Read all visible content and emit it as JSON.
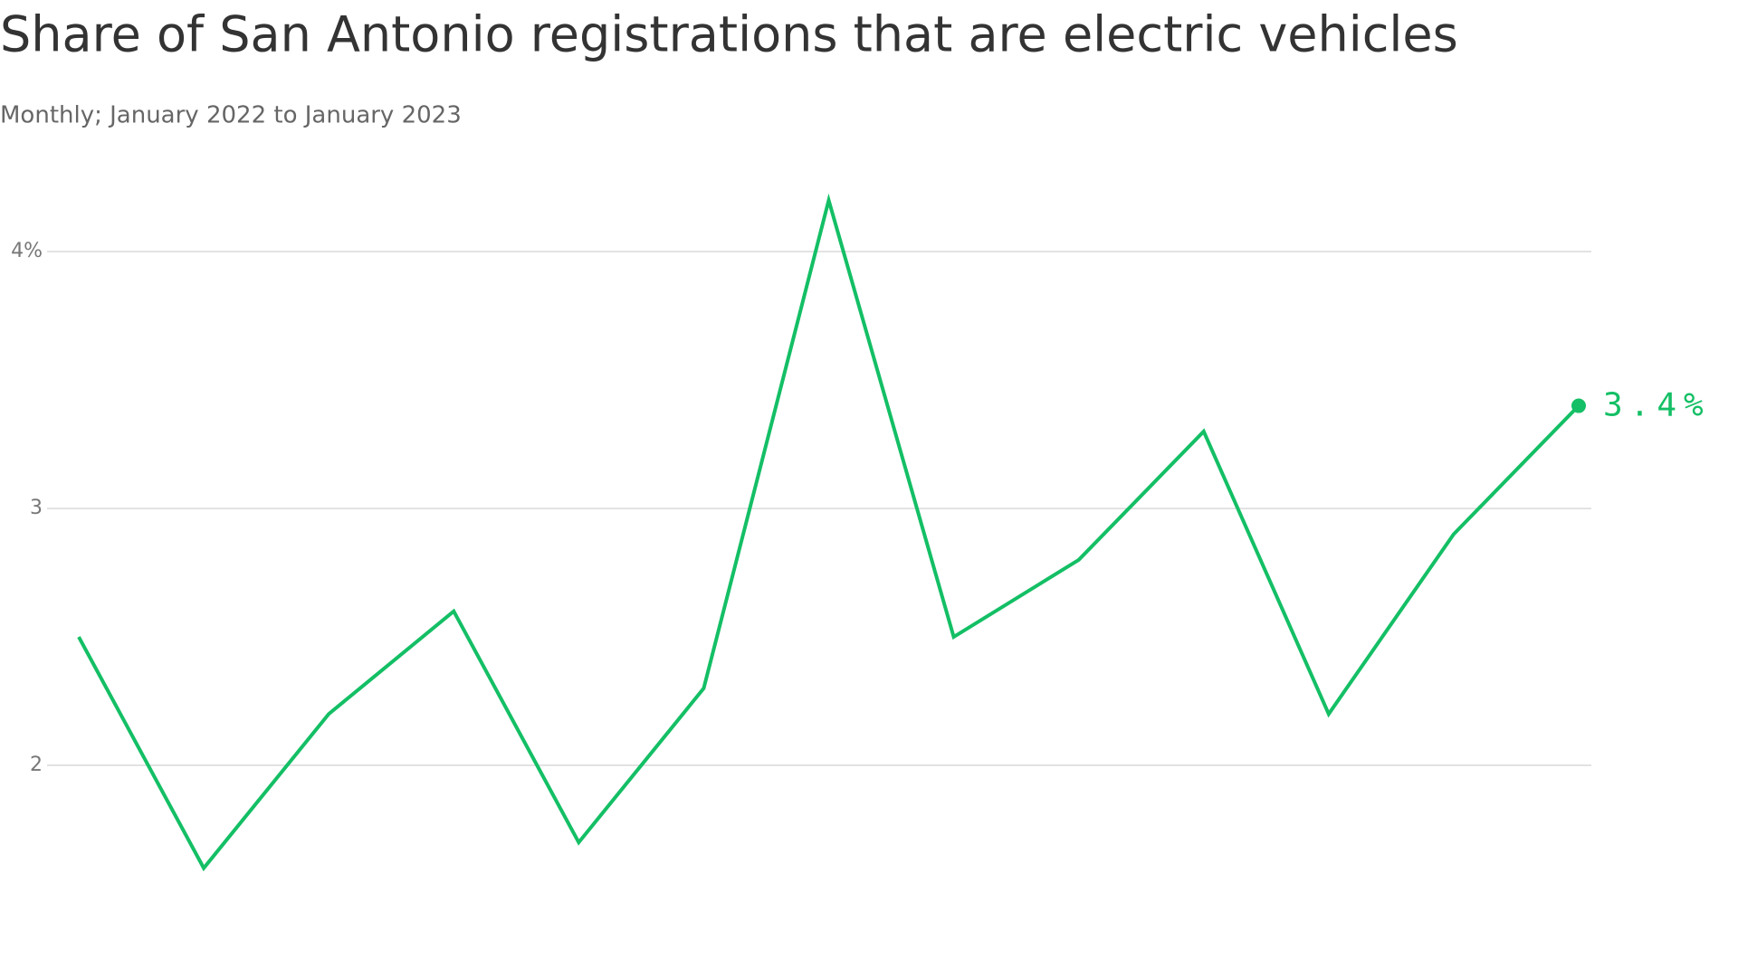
{
  "chart_data": {
    "type": "line",
    "title": "Share of San Antonio registrations that are electric vehicles",
    "subtitle": "Monthly; January 2022 to January 2023",
    "categories": [
      null,
      null,
      null,
      null,
      null,
      null,
      null,
      null,
      null,
      null,
      null,
      null,
      null
    ],
    "series": [
      {
        "name": null,
        "color": "#14bf65",
        "values": [
          2.5,
          1.6,
          2.2,
          2.6,
          1.7,
          2.3,
          4.2,
          2.5,
          2.8,
          3.3,
          2.2,
          2.9,
          3.4
        ],
        "value_labels": [
          null,
          null,
          null,
          null,
          null,
          null,
          null,
          null,
          null,
          null,
          null,
          null,
          "3.4%"
        ]
      }
    ],
    "ylim": [
      1.5,
      4.3
    ],
    "yticks": [
      2,
      3,
      {
        "value": 4,
        "label": "4%"
      }
    ],
    "grid": true
  }
}
